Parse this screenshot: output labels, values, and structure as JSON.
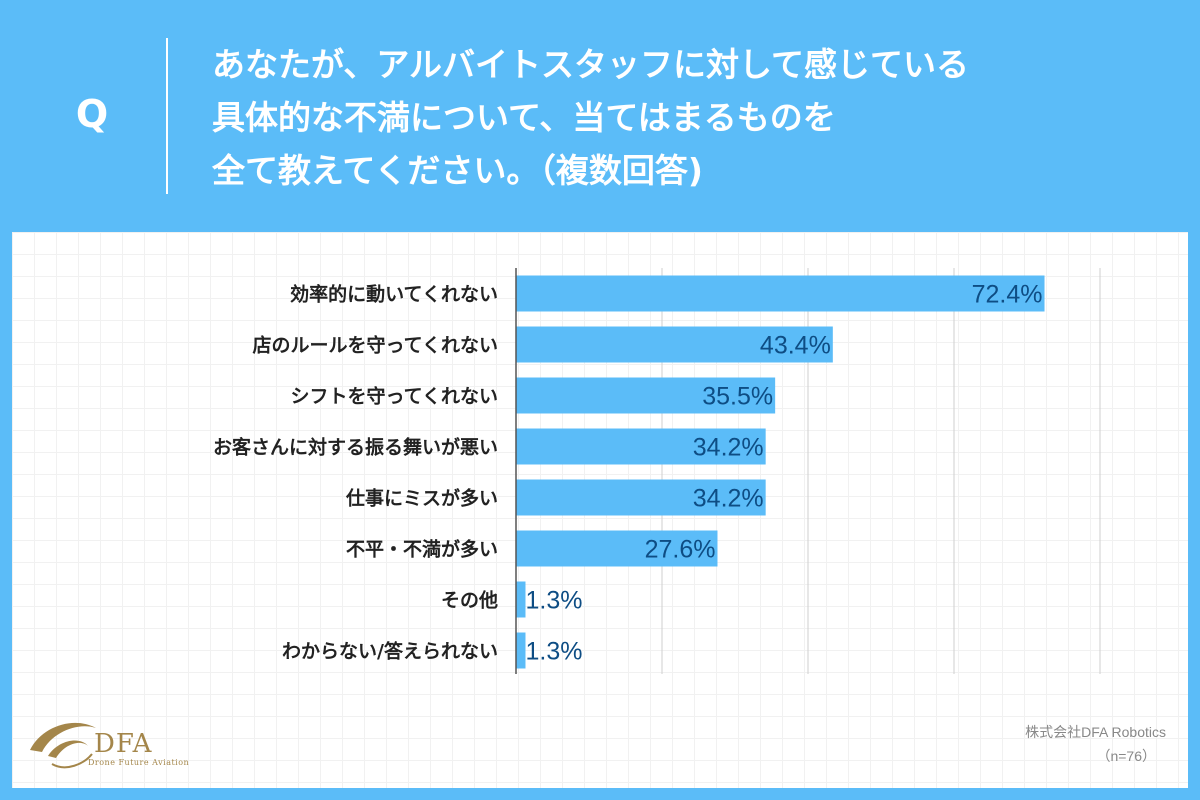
{
  "question": {
    "marker": "Q",
    "lines": [
      "あなたが、アルバイトスタッフに対して感じている",
      "具体的な不満について、当てはまるものを",
      "全て教えてください。（複数回答)"
    ]
  },
  "chart_data": {
    "type": "bar",
    "orientation": "horizontal",
    "categories": [
      "効率的に動いてくれない",
      "店のルールを守ってくれない",
      "シフトを守ってくれない",
      "お客さんに対する振る舞いが悪い",
      "仕事にミスが多い",
      "不平・不満が多い",
      "その他",
      "わからない/答えられない"
    ],
    "values": [
      72.4,
      43.4,
      35.5,
      34.2,
      34.2,
      27.6,
      1.3,
      1.3
    ],
    "value_labels": [
      "72.4%",
      "43.4%",
      "35.5%",
      "34.2%",
      "34.2%",
      "27.6%",
      "1.3%",
      "1.3%"
    ],
    "xlim": [
      0,
      80
    ],
    "grid": true,
    "bar_color": "#5bbcf8",
    "label_color": "#0e4d84"
  },
  "footer": {
    "logo_text": "DFA",
    "logo_subtext": "Drone Future Aviation",
    "company": "株式会社DFA Robotics",
    "sample_size": "（n=76）"
  }
}
